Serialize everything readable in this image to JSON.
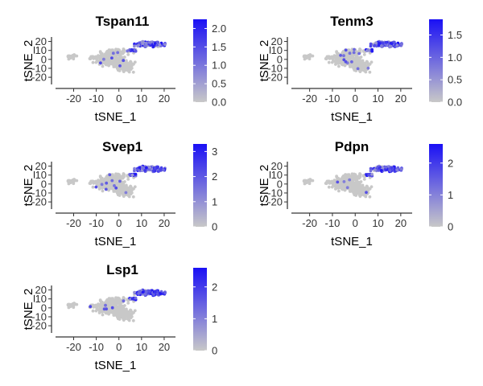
{
  "chart_data": [
    {
      "type": "scatter",
      "title": "Tspan11",
      "xlabel": "tSNE_1",
      "ylabel": "tSNE_2",
      "xlim": [
        -28,
        25
      ],
      "ylim": [
        -28,
        25
      ],
      "xticks": [
        -20,
        -10,
        0,
        10,
        20
      ],
      "yticks": [
        20,
        10,
        0,
        -10,
        -20
      ],
      "colorbar": {
        "min": 0,
        "max": 2.25,
        "ticks": [
          0.0,
          0.5,
          1.0,
          1.5,
          2.0
        ],
        "tick_labels": [
          "0.0",
          "0.5",
          "1.0",
          "1.5",
          "2.0"
        ],
        "low_color": "#c8c8c8",
        "high_color": "#1a10f5"
      }
    },
    {
      "type": "scatter",
      "title": "Tenm3",
      "xlabel": "tSNE_1",
      "ylabel": "tSNE_2",
      "xlim": [
        -28,
        25
      ],
      "ylim": [
        -28,
        25
      ],
      "xticks": [
        -20,
        -10,
        0,
        10,
        20
      ],
      "yticks": [
        20,
        10,
        0,
        -10,
        -20
      ],
      "colorbar": {
        "min": 0,
        "max": 1.85,
        "ticks": [
          0.0,
          0.5,
          1.0,
          1.5
        ],
        "tick_labels": [
          "0.0",
          "0.5",
          "1.0",
          "1.5"
        ],
        "low_color": "#c8c8c8",
        "high_color": "#1a10f5"
      }
    },
    {
      "type": "scatter",
      "title": "Svep1",
      "xlabel": "tSNE_1",
      "ylabel": "tSNE_2",
      "xlim": [
        -28,
        25
      ],
      "ylim": [
        -28,
        25
      ],
      "xticks": [
        -20,
        -10,
        0,
        10,
        20
      ],
      "yticks": [
        20,
        10,
        0,
        -10,
        -20
      ],
      "colorbar": {
        "min": 0,
        "max": 3.3,
        "ticks": [
          0,
          1,
          2,
          3
        ],
        "tick_labels": [
          "0",
          "1",
          "2",
          "3"
        ],
        "low_color": "#c8c8c8",
        "high_color": "#1a10f5"
      }
    },
    {
      "type": "scatter",
      "title": "Pdpn",
      "xlabel": "tSNE_1",
      "ylabel": "tSNE_2",
      "xlim": [
        -28,
        25
      ],
      "ylim": [
        -28,
        25
      ],
      "xticks": [
        -20,
        -10,
        0,
        10,
        20
      ],
      "yticks": [
        20,
        10,
        0,
        -10,
        -20
      ],
      "colorbar": {
        "min": 0,
        "max": 2.6,
        "ticks": [
          0,
          1,
          2
        ],
        "tick_labels": [
          "0",
          "1",
          "2"
        ],
        "low_color": "#c8c8c8",
        "high_color": "#1a10f5"
      }
    },
    {
      "type": "scatter",
      "title": "Lsp1",
      "xlabel": "tSNE_1",
      "ylabel": "tSNE_2",
      "xlim": [
        -28,
        25
      ],
      "ylim": [
        -28,
        25
      ],
      "xticks": [
        -20,
        -10,
        0,
        10,
        20
      ],
      "yticks": [
        20,
        10,
        0,
        -10,
        -20
      ],
      "colorbar": {
        "min": 0,
        "max": 2.6,
        "ticks": [
          0,
          1,
          2
        ],
        "tick_labels": [
          "0",
          "1",
          "2"
        ],
        "low_color": "#c8c8c8",
        "high_color": "#1a10f5"
      }
    }
  ]
}
